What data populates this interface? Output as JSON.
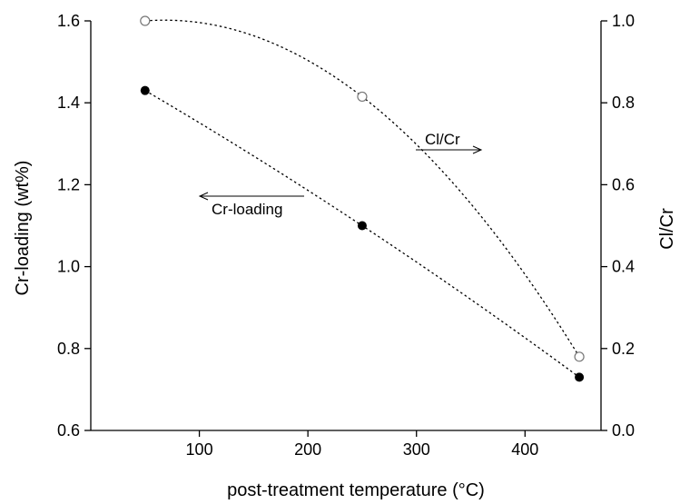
{
  "chart_data": {
    "type": "scatter",
    "xlabel": "post-treatment temperature (°C)",
    "ylabel": "Cr-loading (wt%)",
    "y2label": "Cl/Cr",
    "xlim": [
      0,
      470
    ],
    "ylim": [
      0.6,
      1.6
    ],
    "y2lim": [
      0.0,
      1.0
    ],
    "xticks": [
      100,
      200,
      300,
      400
    ],
    "yticks": [
      "0.6",
      "0.8",
      "1.0",
      "1.2",
      "1.4",
      "1.6"
    ],
    "y2ticks": [
      "0.0",
      "0.2",
      "0.4",
      "0.6",
      "0.8",
      "1.0"
    ],
    "grid": false,
    "series": [
      {
        "name": "Cr-loading",
        "axis": "left",
        "marker": "filled-circle",
        "x": [
          50,
          250,
          450
        ],
        "y": [
          1.43,
          1.1,
          0.73
        ]
      },
      {
        "name": "Cl/Cr",
        "axis": "right",
        "marker": "open-circle",
        "x": [
          50,
          250,
          450
        ],
        "y": [
          1.0,
          0.815,
          0.18
        ]
      }
    ],
    "annotations": [
      {
        "text": "Cl/Cr",
        "arrow": "right"
      },
      {
        "text": "Cr-loading",
        "arrow": "left"
      }
    ]
  }
}
